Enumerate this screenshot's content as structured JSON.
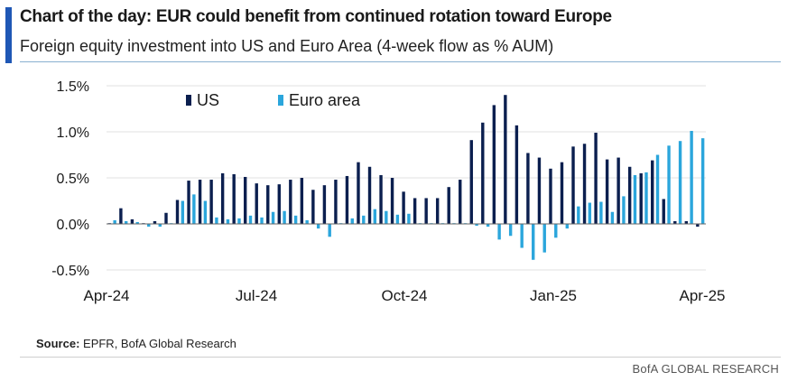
{
  "colors": {
    "accent": "#1f57b5",
    "us": "#0b1f4f",
    "euro": "#2ba6dc",
    "grid": "#e2e2e2",
    "zero": "#666666"
  },
  "header": {
    "title": "Chart of the day: EUR could benefit from continued rotation toward Europe",
    "subtitle": "Foreign equity investment into US and Euro Area (4-week flow as % AUM)"
  },
  "footer": {
    "source_label": "Source:",
    "source_text": " EPFR, BofA Global Research",
    "brand": "BofA GLOBAL RESEARCH"
  },
  "chart_data": {
    "type": "bar",
    "ylim": [
      -0.5,
      1.5
    ],
    "yticks": [
      -0.5,
      0.0,
      0.5,
      1.0,
      1.5
    ],
    "ytick_labels": [
      "-0.5%",
      "0.0%",
      "0.5%",
      "1.0%",
      "1.5%"
    ],
    "xtick_labels": [
      "Apr-24",
      "Jul-24",
      "Oct-24",
      "Jan-25",
      "Apr-25"
    ],
    "grid": true,
    "legend_position": "top-left",
    "series": [
      {
        "name": "US",
        "values": [
          0.0,
          0.17,
          0.05,
          0.0,
          0.03,
          0.12,
          0.26,
          0.47,
          0.48,
          0.48,
          0.55,
          0.54,
          0.51,
          0.44,
          0.42,
          0.43,
          0.48,
          0.5,
          0.37,
          0.42,
          0.48,
          0.52,
          0.67,
          0.62,
          0.53,
          0.5,
          0.35,
          0.28,
          0.28,
          0.28,
          0.4,
          0.48,
          0.91,
          1.1,
          1.29,
          1.4,
          1.07,
          0.77,
          0.72,
          0.6,
          0.67,
          0.84,
          0.87,
          0.99,
          0.7,
          0.72,
          0.62,
          0.55,
          0.69,
          0.27,
          0.03,
          0.03,
          -0.03
        ]
      },
      {
        "name": "Euro area",
        "values": [
          0.04,
          0.03,
          0.02,
          -0.03,
          -0.03,
          0.0,
          0.25,
          0.32,
          0.25,
          0.07,
          0.05,
          0.06,
          0.09,
          0.07,
          0.13,
          0.14,
          0.09,
          0.04,
          -0.05,
          -0.14,
          0.0,
          0.06,
          0.09,
          0.16,
          0.14,
          0.1,
          0.11,
          0.0,
          0.0,
          0.0,
          0.0,
          0.0,
          -0.02,
          -0.03,
          -0.17,
          -0.13,
          -0.26,
          -0.39,
          -0.31,
          -0.15,
          -0.05,
          0.19,
          0.23,
          0.24,
          0.13,
          0.3,
          0.53,
          0.56,
          0.75,
          0.85,
          0.9,
          1.01,
          0.93
        ]
      }
    ]
  }
}
